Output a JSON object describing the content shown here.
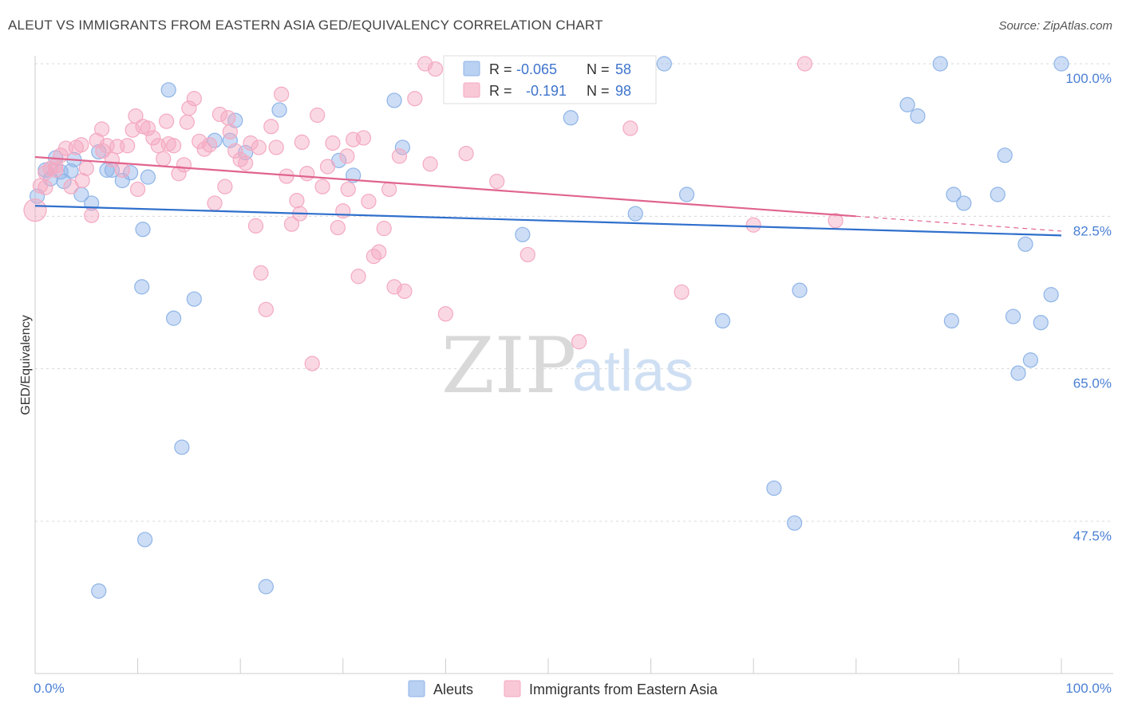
{
  "title": "ALEUT VS IMMIGRANTS FROM EASTERN ASIA GED/EQUIVALENCY CORRELATION CHART",
  "source": "Source: ZipAtlas.com",
  "watermark": {
    "zip": "ZIP",
    "atlas": "atlas"
  },
  "chart_data": {
    "type": "scatter",
    "title": "ALEUT VS IMMIGRANTS FROM EASTERN ASIA GED/EQUIVALENCY CORRELATION CHART",
    "xlabel": "",
    "ylabel": "GED/Equivalency",
    "xlim": [
      0,
      100
    ],
    "ylim": [
      34,
      102
    ],
    "x_tick_labels": {
      "left": "0.0%",
      "right": "100.0%"
    },
    "y_ticks": [
      {
        "value": 100.0,
        "label": "100.0%"
      },
      {
        "value": 82.5,
        "label": "82.5%"
      },
      {
        "value": 65.0,
        "label": "65.0%"
      },
      {
        "value": 47.5,
        "label": "47.5%"
      }
    ],
    "grid": true,
    "legend_position": "top-center",
    "series": [
      {
        "name": "Aleuts",
        "color": "#8fb4e8",
        "line_color": "#2f6fcc",
        "r_label": "R =",
        "r_value": "-0.065",
        "n_label": "N =",
        "n_value": "58",
        "trend": {
          "x": [
            0,
            100
          ],
          "y": [
            83.7,
            80.3
          ],
          "dashed_from": null
        },
        "points": [
          [
            0.2,
            84.8
          ],
          [
            1.0,
            87.8
          ],
          [
            1.5,
            86.8
          ],
          [
            2.0,
            89.2
          ],
          [
            2.5,
            87.6
          ],
          [
            2.8,
            86.5
          ],
          [
            3.5,
            87.7
          ],
          [
            3.8,
            89.0
          ],
          [
            4.5,
            85.0
          ],
          [
            5.5,
            84.0
          ],
          [
            6.2,
            89.9
          ],
          [
            7.0,
            87.8
          ],
          [
            7.5,
            87.8
          ],
          [
            8.5,
            86.6
          ],
          [
            9.3,
            87.5
          ],
          [
            10.5,
            81.0
          ],
          [
            10.4,
            74.4
          ],
          [
            11.0,
            87.0
          ],
          [
            13.0,
            97.0
          ],
          [
            13.5,
            70.8
          ],
          [
            14.3,
            56.0
          ],
          [
            15.5,
            73.0
          ],
          [
            17.5,
            91.2
          ],
          [
            19.0,
            91.2
          ],
          [
            19.5,
            93.5
          ],
          [
            20.5,
            89.8
          ],
          [
            23.8,
            94.7
          ],
          [
            29.6,
            88.9
          ],
          [
            31.0,
            87.2
          ],
          [
            35.0,
            95.8
          ],
          [
            35.8,
            90.4
          ],
          [
            47.5,
            80.4
          ],
          [
            52.2,
            93.8
          ],
          [
            58.5,
            82.8
          ],
          [
            61.3,
            100.0
          ],
          [
            63.5,
            85.0
          ],
          [
            67.0,
            70.5
          ],
          [
            72.0,
            51.3
          ],
          [
            74.0,
            47.3
          ],
          [
            74.5,
            74.0
          ],
          [
            85.0,
            95.3
          ],
          [
            86.0,
            94.0
          ],
          [
            88.2,
            100.0
          ],
          [
            89.3,
            70.5
          ],
          [
            89.5,
            85.0
          ],
          [
            90.5,
            84.0
          ],
          [
            94.5,
            89.5
          ],
          [
            95.3,
            71.0
          ],
          [
            95.8,
            64.5
          ],
          [
            96.5,
            79.3
          ],
          [
            98.0,
            70.3
          ],
          [
            100.0,
            100.0
          ],
          [
            10.7,
            45.4
          ],
          [
            6.2,
            39.5
          ],
          [
            22.5,
            40.0
          ],
          [
            97.0,
            66.0
          ],
          [
            99.0,
            73.5
          ],
          [
            93.8,
            85.0
          ]
        ]
      },
      {
        "name": "Immigrants from Eastern Asia",
        "color": "#f4a9c1",
        "line_color": "#e0648e",
        "r_label": "R =",
        "r_value": "-0.191",
        "n_label": "N =",
        "n_value": "98",
        "trend": {
          "x": [
            0,
            100
          ],
          "y": [
            89.3,
            80.8
          ],
          "dashed_from": 80
        },
        "points": [
          [
            0.0,
            83.2
          ],
          [
            0.5,
            86.0
          ],
          [
            1.0,
            87.5
          ],
          [
            1.5,
            88.0
          ],
          [
            2.0,
            87.8
          ],
          [
            2.5,
            89.5
          ],
          [
            3.0,
            90.3
          ],
          [
            3.5,
            85.9
          ],
          [
            4.0,
            90.4
          ],
          [
            4.5,
            90.7
          ],
          [
            5.0,
            88.0
          ],
          [
            5.5,
            82.6
          ],
          [
            6.0,
            91.2
          ],
          [
            6.5,
            92.5
          ],
          [
            7.0,
            90.6
          ],
          [
            7.5,
            89.0
          ],
          [
            8.0,
            90.5
          ],
          [
            8.5,
            87.8
          ],
          [
            9.0,
            90.6
          ],
          [
            9.5,
            92.4
          ],
          [
            10.0,
            85.6
          ],
          [
            10.5,
            92.8
          ],
          [
            11.0,
            92.6
          ],
          [
            11.5,
            91.5
          ],
          [
            12.0,
            90.6
          ],
          [
            12.5,
            89.1
          ],
          [
            13.0,
            90.8
          ],
          [
            13.5,
            90.6
          ],
          [
            14.0,
            87.4
          ],
          [
            14.5,
            88.4
          ],
          [
            15.0,
            94.9
          ],
          [
            15.5,
            96.0
          ],
          [
            16.0,
            91.1
          ],
          [
            16.5,
            90.2
          ],
          [
            17.0,
            90.7
          ],
          [
            17.5,
            84.0
          ],
          [
            18.0,
            94.2
          ],
          [
            18.5,
            85.9
          ],
          [
            19.0,
            92.2
          ],
          [
            19.5,
            90.0
          ],
          [
            20.0,
            89.0
          ],
          [
            20.5,
            88.6
          ],
          [
            21.0,
            90.9
          ],
          [
            21.5,
            81.4
          ],
          [
            22.0,
            76.0
          ],
          [
            22.5,
            71.8
          ],
          [
            23.0,
            92.8
          ],
          [
            23.5,
            90.4
          ],
          [
            24.0,
            96.5
          ],
          [
            24.5,
            87.1
          ],
          [
            25.0,
            81.6
          ],
          [
            25.5,
            84.3
          ],
          [
            26.0,
            91.0
          ],
          [
            26.5,
            87.4
          ],
          [
            27.0,
            65.6
          ],
          [
            27.5,
            94.1
          ],
          [
            28.0,
            85.9
          ],
          [
            28.5,
            88.2
          ],
          [
            29.0,
            90.9
          ],
          [
            29.5,
            81.2
          ],
          [
            30.0,
            83.1
          ],
          [
            30.5,
            85.6
          ],
          [
            31.0,
            91.3
          ],
          [
            31.5,
            75.6
          ],
          [
            32.0,
            91.5
          ],
          [
            32.5,
            84.2
          ],
          [
            33.0,
            77.9
          ],
          [
            33.5,
            78.4
          ],
          [
            34.0,
            81.1
          ],
          [
            34.5,
            85.6
          ],
          [
            35.0,
            74.4
          ],
          [
            35.5,
            89.4
          ],
          [
            36.0,
            73.9
          ],
          [
            37.0,
            96.0
          ],
          [
            38.0,
            100.0
          ],
          [
            39.0,
            99.4
          ],
          [
            40.0,
            71.3
          ],
          [
            42.0,
            89.7
          ],
          [
            45.0,
            86.5
          ],
          [
            48.0,
            78.1
          ],
          [
            53.0,
            68.1
          ],
          [
            58.0,
            92.6
          ],
          [
            63.0,
            73.8
          ],
          [
            70.0,
            81.5
          ],
          [
            75.0,
            100.0
          ],
          [
            78.0,
            82.0
          ],
          [
            38.5,
            88.5
          ],
          [
            12.8,
            93.4
          ],
          [
            9.8,
            94.0
          ],
          [
            2.0,
            88.3
          ],
          [
            1.0,
            85.8
          ],
          [
            6.6,
            90.0
          ],
          [
            4.6,
            86.6
          ],
          [
            14.8,
            93.3
          ],
          [
            18.8,
            93.8
          ],
          [
            21.8,
            90.4
          ],
          [
            25.8,
            82.8
          ],
          [
            30.4,
            89.4
          ]
        ]
      }
    ]
  }
}
